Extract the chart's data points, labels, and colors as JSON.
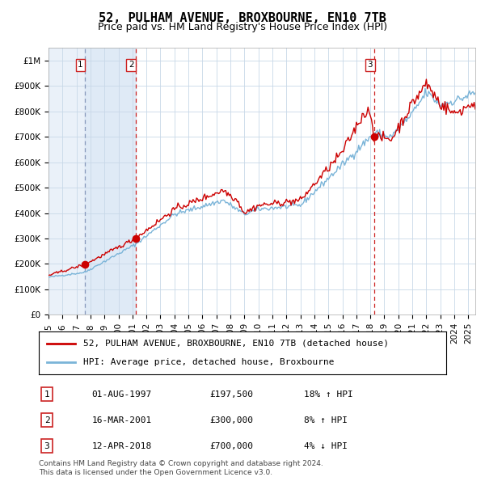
{
  "title": "52, PULHAM AVENUE, BROXBOURNE, EN10 7TB",
  "subtitle": "Price paid vs. HM Land Registry's House Price Index (HPI)",
  "xlabel": "",
  "ylabel": "",
  "ylim": [
    0,
    1050000
  ],
  "xlim_start": 1995.0,
  "xlim_end": 2025.5,
  "yticks": [
    0,
    100000,
    200000,
    300000,
    400000,
    500000,
    600000,
    700000,
    800000,
    900000,
    1000000
  ],
  "ytick_labels": [
    "£0",
    "£100K",
    "£200K",
    "£300K",
    "£400K",
    "£500K",
    "£600K",
    "£700K",
    "£800K",
    "£900K",
    "£1M"
  ],
  "transactions": [
    {
      "num": 1,
      "date_str": "01-AUG-1997",
      "date_x": 1997.58,
      "price": 197500,
      "pct": "18%",
      "dir": "↑"
    },
    {
      "num": 2,
      "date_str": "16-MAR-2001",
      "date_x": 2001.21,
      "price": 300000,
      "pct": "8%",
      "dir": "↑"
    },
    {
      "num": 3,
      "date_str": "12-APR-2018",
      "date_x": 2018.28,
      "price": 700000,
      "pct": "4%",
      "dir": "↓"
    }
  ],
  "hpi_line_color": "#7ab4d8",
  "price_line_color": "#cc0000",
  "marker_color": "#cc0000",
  "vline_color_1": "#8899bb",
  "vline_color_2": "#cc2222",
  "shade_color": "#dce8f5",
  "grid_color": "#c8d8e8",
  "background_color": "#ffffff",
  "legend_label_red": "52, PULHAM AVENUE, BROXBOURNE, EN10 7TB (detached house)",
  "legend_label_blue": "HPI: Average price, detached house, Broxbourne",
  "footer": "Contains HM Land Registry data © Crown copyright and database right 2024.\nThis data is licensed under the Open Government Licence v3.0.",
  "title_fontsize": 11,
  "subtitle_fontsize": 9,
  "tick_fontsize": 7.5,
  "legend_fontsize": 8,
  "table_fontsize": 8
}
